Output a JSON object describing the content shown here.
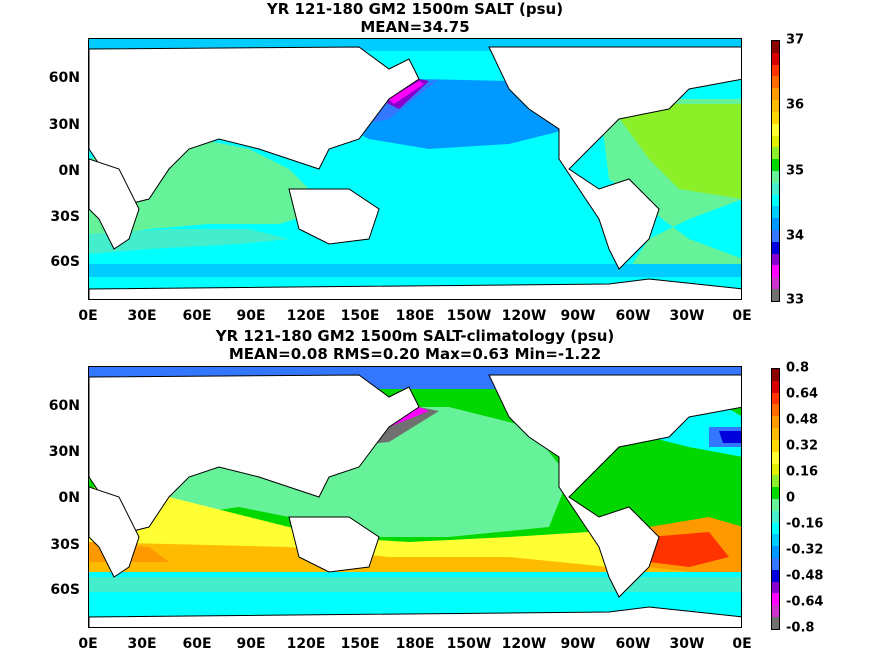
{
  "panel1": {
    "title_line1": "YR 121-180 GM2 1500m SALT (psu)",
    "title_line2": "MEAN=34.75",
    "colorbar_labels": [
      "37",
      "36",
      "35",
      "34",
      "33"
    ],
    "colorbar_colors": [
      "#8b0000",
      "#d90000",
      "#ff3300",
      "#ff6a00",
      "#ff9900",
      "#ffbb00",
      "#ffd700",
      "#ffff33",
      "#e0f000",
      "#8cf028",
      "#00d800",
      "#66f299",
      "#44eecc",
      "#00ffff",
      "#00ccff",
      "#0099ff",
      "#3377ff",
      "#0000dd",
      "#8800cc",
      "#ff00ff",
      "#cc33cc",
      "#707070"
    ]
  },
  "panel2": {
    "title_line1": "YR 121-180 GM2 1500m SALT-climatology (psu)",
    "title_line2": "MEAN=0.08   RMS=0.20   Max=0.63   Min=-1.22",
    "colorbar_labels": [
      "0.8",
      "0.64",
      "0.48",
      "0.32",
      "0.16",
      "0",
      "-0.16",
      "-0.32",
      "-0.48",
      "-0.64",
      "-0.8"
    ],
    "colorbar_colors": [
      "#8b0000",
      "#d90000",
      "#ff3300",
      "#ff6a00",
      "#ff9900",
      "#ffbb00",
      "#ffd700",
      "#ffff33",
      "#e0f000",
      "#8cf028",
      "#00d800",
      "#66f299",
      "#44eecc",
      "#00ffff",
      "#00ccff",
      "#0099ff",
      "#3377ff",
      "#0000dd",
      "#8800cc",
      "#ff00ff",
      "#cc33cc",
      "#707070"
    ]
  },
  "x_ticks": [
    "0E",
    "30E",
    "60E",
    "90E",
    "120E",
    "150E",
    "180E",
    "150W",
    "120W",
    "90W",
    "60W",
    "30W",
    "0E"
  ],
  "y_ticks": [
    "60N",
    "30N",
    "0N",
    "30S",
    "60S"
  ]
}
